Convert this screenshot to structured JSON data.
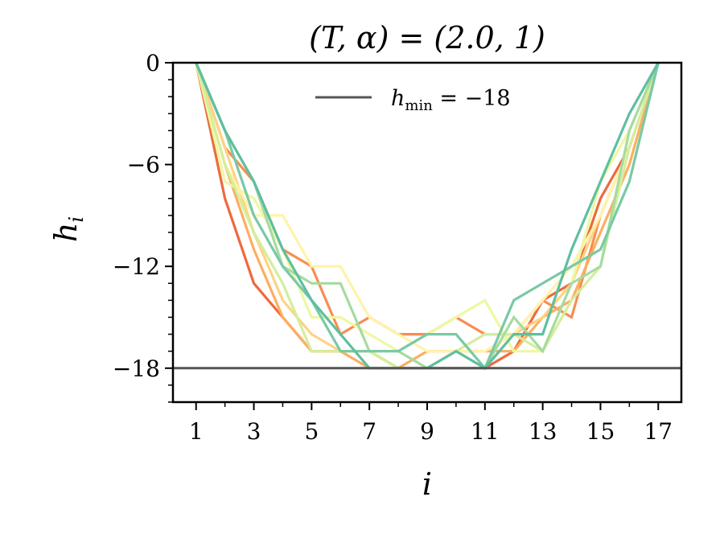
{
  "chart_data": {
    "type": "line",
    "title": "(T, α) = (2.0, 1)",
    "xlabel": "i",
    "ylabel": "h_i",
    "xlim": [
      0.2,
      17.8
    ],
    "ylim": [
      -20,
      0
    ],
    "xticks": [
      1,
      3,
      5,
      7,
      9,
      11,
      13,
      15,
      17
    ],
    "xtick_labels": [
      "1",
      "3",
      "5",
      "7",
      "9",
      "11",
      "13",
      "15",
      "17"
    ],
    "yticks": [
      0,
      -6,
      -12,
      -18
    ],
    "ytick_labels": [
      "0",
      "−6",
      "−12",
      "−18"
    ],
    "grid": false,
    "legend_position": "top-center",
    "x": [
      1,
      2,
      3,
      4,
      5,
      6,
      7,
      8,
      9,
      10,
      11,
      12,
      13,
      14,
      15,
      16,
      17
    ],
    "reference_line": {
      "name": "h_min = −18",
      "label_base": "h",
      "label_sub": "min",
      "label_rest": " = −18",
      "y": -18,
      "color": "#555555"
    },
    "series": [
      {
        "color": "#ee6a3e",
        "values": [
          0,
          -8,
          -13,
          -15,
          -17,
          -17,
          -17,
          -18,
          -18,
          -18,
          -18,
          -17,
          -14,
          -13,
          -8,
          -5,
          0
        ]
      },
      {
        "color": "#f88d52",
        "values": [
          0,
          -5,
          -7,
          -11,
          -12,
          -16,
          -15,
          -16,
          -16,
          -15,
          -16,
          -16,
          -14,
          -15,
          -9,
          -5,
          0
        ]
      },
      {
        "color": "#fdae61",
        "values": [
          0,
          -6,
          -11,
          -15,
          -17,
          -17,
          -18,
          -18,
          -17,
          -17,
          -17,
          -17,
          -15,
          -14,
          -10,
          -6,
          0
        ]
      },
      {
        "color": "#fed384",
        "values": [
          0,
          -5,
          -10,
          -14,
          -16,
          -17,
          -17,
          -18,
          -18,
          -17,
          -17,
          -16,
          -15,
          -13,
          -9,
          -5,
          0
        ]
      },
      {
        "color": "#fff3aa",
        "values": [
          0,
          -6,
          -9,
          -9,
          -12,
          -12,
          -15,
          -16,
          -17,
          -17,
          -17,
          -16,
          -14,
          -12,
          -9,
          -5,
          0
        ]
      },
      {
        "color": "#eef8a2",
        "values": [
          0,
          -7,
          -8,
          -11,
          -15,
          -15,
          -16,
          -17,
          -16,
          -15,
          -14,
          -17,
          -17,
          -13,
          -7,
          -4,
          0
        ]
      },
      {
        "color": "#d4ee9b",
        "values": [
          0,
          -6,
          -10,
          -13,
          -17,
          -17,
          -17,
          -18,
          -18,
          -17,
          -16,
          -16,
          -17,
          -14,
          -12,
          -5,
          0
        ]
      },
      {
        "color": "#a6dba0",
        "values": [
          0,
          -4,
          -7,
          -12,
          -13,
          -13,
          -17,
          -17,
          -18,
          -18,
          -18,
          -15,
          -17,
          -13,
          -12,
          -4,
          0
        ]
      },
      {
        "color": "#79c9a5",
        "values": [
          0,
          -4,
          -9,
          -12,
          -14,
          -17,
          -17,
          -17,
          -16,
          -16,
          -18,
          -14,
          -13,
          -12,
          -11,
          -7,
          0
        ]
      },
      {
        "color": "#5fbfa0",
        "values": [
          0,
          -4,
          -7,
          -11,
          -14,
          -16,
          -18,
          -18,
          -18,
          -17,
          -18,
          -16,
          -16,
          -11,
          -7,
          -3,
          0
        ]
      }
    ]
  }
}
